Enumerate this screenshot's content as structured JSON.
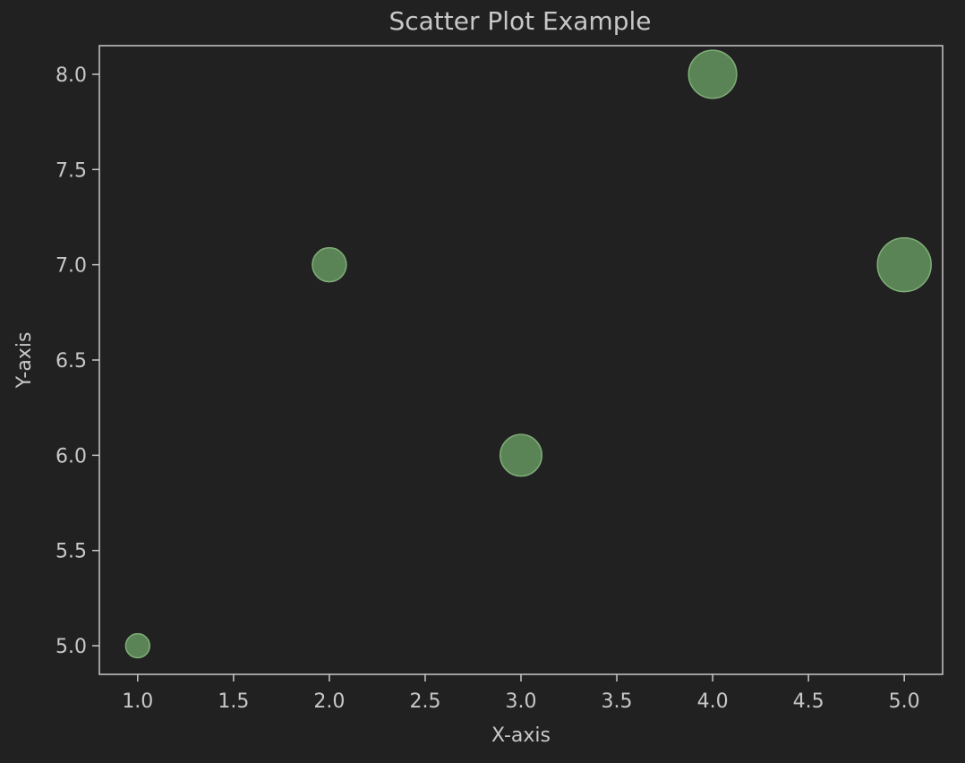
{
  "chart_data": {
    "type": "scatter",
    "title": "Scatter Plot Example",
    "xlabel": "X-axis",
    "ylabel": "Y-axis",
    "xlim": [
      0.8,
      5.2
    ],
    "ylim": [
      4.85,
      8.15
    ],
    "xticks": [
      1.0,
      1.5,
      2.0,
      2.5,
      3.0,
      3.5,
      4.0,
      4.5,
      5.0
    ],
    "xtick_labels": [
      "1.0",
      "1.5",
      "2.0",
      "2.5",
      "3.0",
      "3.5",
      "4.0",
      "4.5",
      "5.0"
    ],
    "yticks": [
      5.0,
      5.5,
      6.0,
      6.5,
      7.0,
      7.5,
      8.0
    ],
    "ytick_labels": [
      "5.0",
      "5.5",
      "6.0",
      "6.5",
      "7.0",
      "7.5",
      "8.0"
    ],
    "grid": false,
    "series": [
      {
        "points": [
          {
            "x": 1,
            "y": 5,
            "size": 1
          },
          {
            "x": 2,
            "y": 7,
            "size": 2
          },
          {
            "x": 3,
            "y": 6,
            "size": 3
          },
          {
            "x": 4,
            "y": 8,
            "size": 4
          },
          {
            "x": 5,
            "y": 7,
            "size": 5
          }
        ]
      }
    ],
    "colors": {
      "background": "#212121",
      "axes": "#c8c8c8",
      "text": "#c8c8c8",
      "marker_fill": "#5f8a5a",
      "marker_edge": "#7fae78"
    }
  }
}
